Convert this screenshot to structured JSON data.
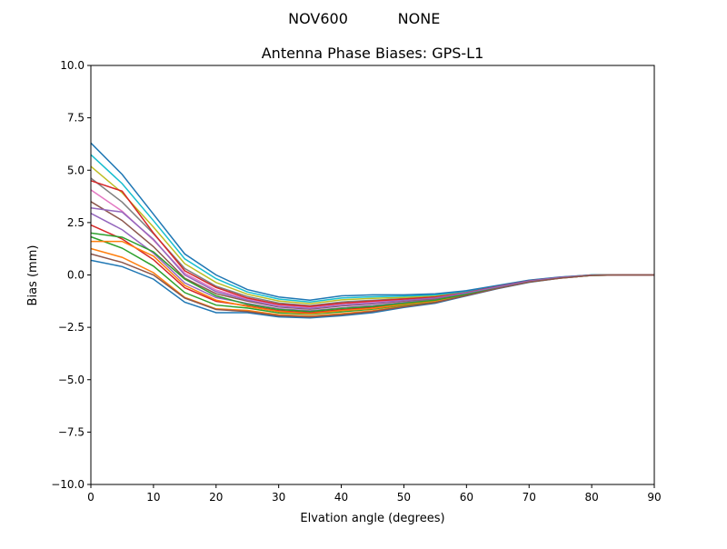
{
  "chart_data": {
    "type": "line",
    "suptitle_left": "NOV600",
    "suptitle_right": "NONE",
    "title": "Antenna Phase Biases: GPS-L1",
    "xlabel": "Elvation angle (degrees)",
    "ylabel": "Bias (mm)",
    "xlim": [
      0,
      90
    ],
    "ylim": [
      -10,
      10
    ],
    "xticks": [
      0,
      10,
      20,
      30,
      40,
      50,
      60,
      70,
      80,
      90
    ],
    "yticks": [
      -10.0,
      -7.5,
      -5.0,
      -2.5,
      0.0,
      2.5,
      5.0,
      7.5,
      10.0
    ],
    "ytick_labels": [
      "−10.0",
      "−7.5",
      "−5.0",
      "−2.5",
      "0.0",
      "2.5",
      "5.0",
      "7.5",
      "10.0"
    ],
    "grid": false,
    "colors": [
      "#1f77b4",
      "#ff7f0e",
      "#2ca02c",
      "#d62728",
      "#9467bd",
      "#8c564b",
      "#e377c2",
      "#7f7f7f",
      "#bcbd22",
      "#17becf"
    ],
    "x": [
      0,
      5,
      10,
      15,
      20,
      25,
      30,
      35,
      40,
      45,
      50,
      55,
      60,
      65,
      70,
      75,
      80,
      85,
      90
    ],
    "series": [
      {
        "values": [
          0.7,
          0.4,
          -0.2,
          -1.3,
          -1.8,
          -1.8,
          -2.0,
          -2.05,
          -1.95,
          -1.8,
          -1.55,
          -1.35,
          -1.0,
          -0.65,
          -0.35,
          -0.15,
          -0.02,
          0,
          0
        ]
      },
      {
        "values": [
          1.26,
          0.84,
          0.11,
          -1.07,
          -1.62,
          -1.69,
          -1.9,
          -1.96,
          -1.85,
          -1.71,
          -1.49,
          -1.3,
          -0.97,
          -0.63,
          -0.34,
          -0.15,
          -0.02,
          0,
          0
        ]
      },
      {
        "values": [
          1.82,
          1.28,
          0.42,
          -0.84,
          -1.44,
          -1.58,
          -1.81,
          -1.88,
          -1.76,
          -1.63,
          -1.43,
          -1.26,
          -0.95,
          -0.62,
          -0.33,
          -0.14,
          -0.02,
          0,
          0
        ]
      },
      {
        "values": [
          2.38,
          1.72,
          0.73,
          -0.61,
          -1.26,
          -1.47,
          -1.71,
          -1.8,
          -1.66,
          -1.54,
          -1.37,
          -1.22,
          -0.92,
          -0.6,
          -0.32,
          -0.14,
          -0.01,
          0,
          0
        ]
      },
      {
        "values": [
          2.94,
          2.16,
          1.04,
          -0.38,
          -1.08,
          -1.36,
          -1.62,
          -1.71,
          -1.57,
          -1.46,
          -1.31,
          -1.17,
          -0.9,
          -0.59,
          -0.31,
          -0.13,
          -0.01,
          0,
          0
        ]
      },
      {
        "values": [
          3.5,
          2.6,
          1.35,
          -0.15,
          -0.9,
          -1.25,
          -1.53,
          -1.63,
          -1.48,
          -1.38,
          -1.25,
          -1.13,
          -0.88,
          -0.58,
          -0.3,
          -0.13,
          -0.01,
          0,
          0
        ]
      },
      {
        "values": [
          4.06,
          3.04,
          1.66,
          0.08,
          -0.72,
          -1.14,
          -1.43,
          -1.54,
          -1.38,
          -1.29,
          -1.19,
          -1.08,
          -0.85,
          -0.56,
          -0.29,
          -0.12,
          -0.01,
          0,
          0
        ]
      },
      {
        "values": [
          4.62,
          3.48,
          1.97,
          0.31,
          -0.54,
          -1.03,
          -1.34,
          -1.46,
          -1.29,
          -1.21,
          -1.13,
          -1.04,
          -0.83,
          -0.55,
          -0.28,
          -0.12,
          -0.01,
          0,
          0
        ]
      },
      {
        "values": [
          5.18,
          3.92,
          2.28,
          0.54,
          -0.36,
          -0.92,
          -1.24,
          -1.37,
          -1.19,
          -1.12,
          -1.07,
          -0.99,
          -0.8,
          -0.53,
          -0.27,
          -0.11,
          0,
          0,
          0
        ]
      },
      {
        "values": [
          5.74,
          4.36,
          2.59,
          0.77,
          -0.18,
          -0.81,
          -1.15,
          -1.29,
          -1.1,
          -1.04,
          -1.01,
          -0.95,
          -0.78,
          -0.52,
          -0.26,
          -0.11,
          0,
          0,
          0
        ]
      },
      {
        "values": [
          6.3,
          4.8,
          2.9,
          1.0,
          0.0,
          -0.7,
          -1.05,
          -1.2,
          -1.0,
          -0.95,
          -0.95,
          -0.9,
          -0.75,
          -0.5,
          -0.25,
          -0.1,
          0,
          0,
          0
        ]
      },
      {
        "values": [
          1.6,
          1.6,
          0.9,
          -0.5,
          -1.2,
          -1.5,
          -1.75,
          -1.85,
          -1.7,
          -1.6,
          -1.4,
          -1.25,
          -0.95,
          -0.6,
          -0.32,
          -0.14,
          -0.01,
          0,
          0
        ]
      },
      {
        "values": [
          2.0,
          1.8,
          1.1,
          -0.2,
          -1.0,
          -1.4,
          -1.65,
          -1.75,
          -1.6,
          -1.5,
          -1.35,
          -1.2,
          -0.92,
          -0.6,
          -0.31,
          -0.13,
          -0.01,
          0,
          0
        ]
      },
      {
        "values": [
          4.5,
          4.0,
          2.0,
          0.2,
          -0.6,
          -1.1,
          -1.4,
          -1.5,
          -1.35,
          -1.25,
          -1.15,
          -1.05,
          -0.84,
          -0.55,
          -0.28,
          -0.12,
          -0.01,
          0,
          0
        ]
      },
      {
        "values": [
          3.2,
          3.0,
          1.7,
          0.0,
          -0.8,
          -1.2,
          -1.5,
          -1.6,
          -1.45,
          -1.35,
          -1.22,
          -1.1,
          -0.86,
          -0.57,
          -0.29,
          -0.12,
          -0.01,
          0,
          0
        ]
      },
      {
        "values": [
          1.0,
          0.6,
          0.0,
          -1.1,
          -1.65,
          -1.75,
          -1.95,
          -2.0,
          -1.9,
          -1.75,
          -1.52,
          -1.32,
          -0.98,
          -0.64,
          -0.34,
          -0.15,
          -0.02,
          0,
          0
        ]
      }
    ]
  }
}
